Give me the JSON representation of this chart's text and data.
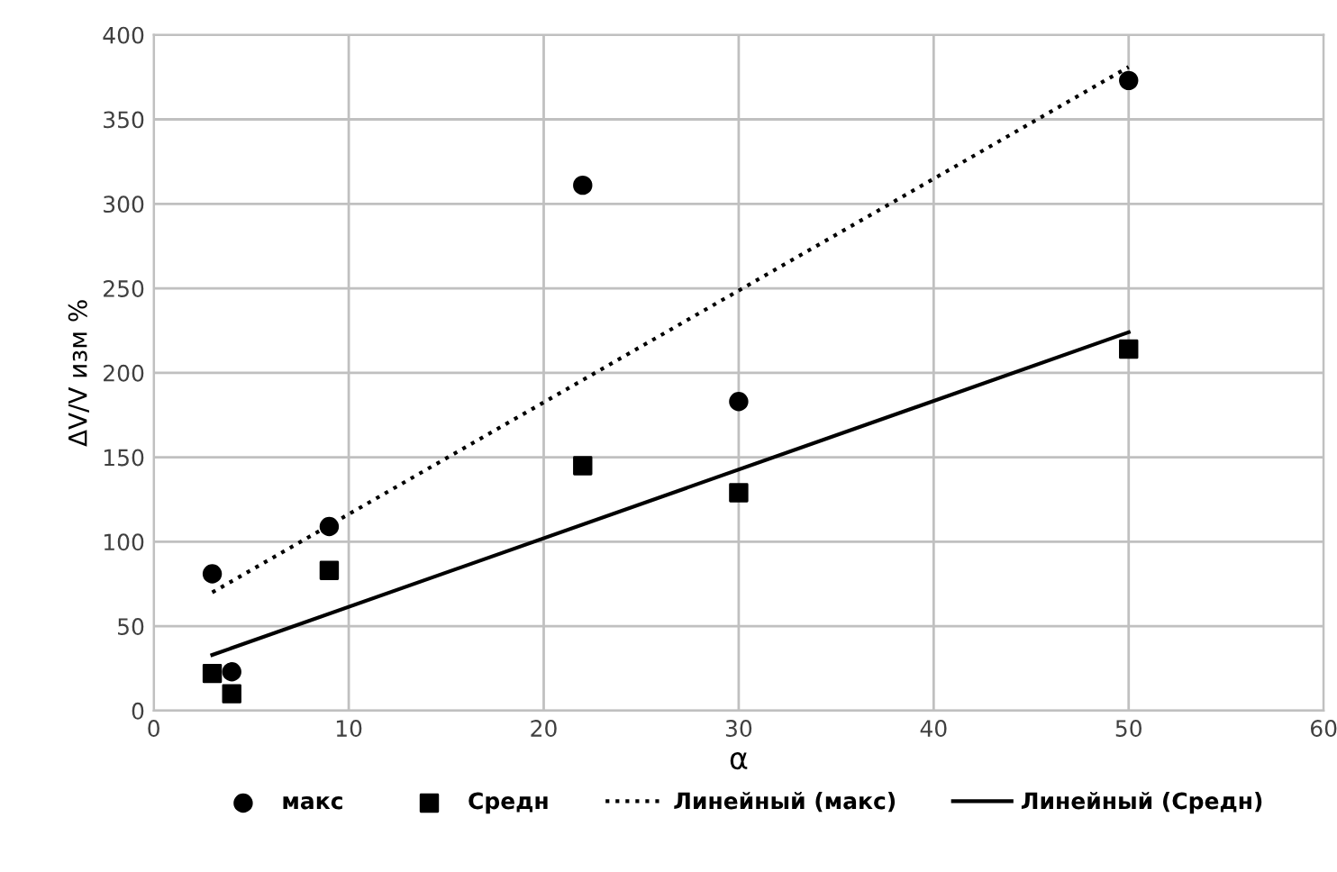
{
  "chart_data": {
    "type": "scatter",
    "xlabel": "α",
    "ylabel": "ΔV/V изм %",
    "xlim": [
      0,
      60
    ],
    "xticks": [
      0,
      10,
      20,
      30,
      40,
      50,
      60
    ],
    "ylim": [
      0,
      400
    ],
    "yticks": [
      0,
      50,
      100,
      150,
      200,
      250,
      300,
      350,
      400
    ],
    "grid": true,
    "legend": "bottom",
    "series": [
      {
        "name": "макс",
        "marker": "circle",
        "color": "#000000",
        "x": [
          3,
          4,
          9,
          22,
          30,
          50
        ],
        "values": [
          81,
          23,
          109,
          311,
          183,
          373
        ]
      },
      {
        "name": "Средн",
        "marker": "square",
        "color": "#000000",
        "x": [
          3,
          4,
          9,
          22,
          30,
          50
        ],
        "values": [
          22,
          10,
          83,
          145,
          129,
          214
        ]
      },
      {
        "name": "Линейный (макс)",
        "type": "line",
        "line_style": "dotted",
        "color": "#000000",
        "x": [
          3,
          50
        ],
        "values": [
          70,
          381
        ]
      },
      {
        "name": "Линейный (Средн)",
        "type": "line",
        "line_style": "solid",
        "color": "#000000",
        "x": [
          3,
          50
        ],
        "values": [
          33,
          224
        ]
      }
    ]
  }
}
